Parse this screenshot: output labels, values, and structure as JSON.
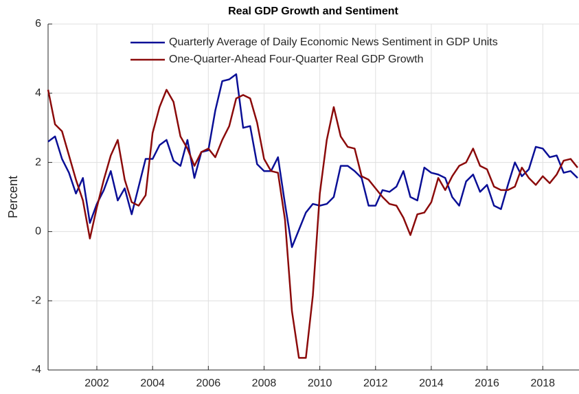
{
  "chart_data": {
    "type": "line",
    "title": "Real GDP Growth and Sentiment",
    "y_label": "Percent",
    "x": [
      2000.25,
      2000.5,
      2000.75,
      2001,
      2001.25,
      2001.5,
      2001.75,
      2002,
      2002.25,
      2002.5,
      2002.75,
      2003,
      2003.25,
      2003.5,
      2003.75,
      2004,
      2004.25,
      2004.5,
      2004.75,
      2005,
      2005.25,
      2005.5,
      2005.75,
      2006,
      2006.25,
      2006.5,
      2006.75,
      2007,
      2007.25,
      2007.5,
      2007.75,
      2008,
      2008.25,
      2008.5,
      2008.75,
      2009,
      2009.25,
      2009.5,
      2009.75,
      2010,
      2010.25,
      2010.5,
      2010.75,
      2011,
      2011.25,
      2011.5,
      2011.75,
      2012,
      2012.25,
      2012.5,
      2012.75,
      2013,
      2013.25,
      2013.5,
      2013.75,
      2014,
      2014.25,
      2014.5,
      2014.75,
      2015,
      2015.25,
      2015.5,
      2015.75,
      2016,
      2016.25,
      2016.5,
      2016.75,
      2017,
      2017.25,
      2017.5,
      2017.75,
      2018,
      2018.25,
      2018.5,
      2018.75,
      2019,
      2019.25
    ],
    "series": [
      {
        "name": "Quarterly Average of Daily Economic News Sentiment in GDP Units",
        "color": "#0a0f96",
        "values": [
          2.6,
          2.75,
          2.1,
          1.7,
          1.1,
          1.55,
          0.25,
          0.8,
          1.2,
          1.75,
          0.9,
          1.25,
          0.5,
          1.3,
          2.1,
          2.1,
          2.5,
          2.65,
          2.05,
          1.9,
          2.65,
          1.55,
          2.3,
          2.35,
          3.5,
          4.35,
          4.4,
          4.55,
          3.0,
          3.05,
          1.95,
          1.75,
          1.75,
          2.15,
          0.8,
          -0.45,
          0.05,
          0.55,
          0.8,
          0.75,
          0.8,
          1.0,
          1.9,
          1.9,
          1.75,
          1.55,
          0.75,
          0.75,
          1.2,
          1.15,
          1.3,
          1.75,
          1.0,
          0.9,
          1.85,
          1.7,
          1.65,
          1.55,
          1.0,
          0.75,
          1.45,
          1.65,
          1.15,
          1.35,
          0.75,
          0.65,
          1.35,
          2.0,
          1.6,
          1.8,
          2.45,
          2.4,
          2.15,
          2.2,
          1.7,
          1.75,
          1.55
        ]
      },
      {
        "name": "One-Quarter-Ahead Four-Quarter Real GDP Growth",
        "color": "#8b0a0a",
        "values": [
          4.1,
          3.1,
          2.9,
          2.2,
          1.5,
          0.9,
          -0.2,
          0.7,
          1.5,
          2.2,
          2.65,
          1.5,
          0.85,
          0.75,
          1.05,
          2.85,
          3.6,
          4.1,
          3.75,
          2.75,
          2.4,
          1.9,
          2.3,
          2.4,
          2.15,
          2.65,
          3.05,
          3.85,
          3.95,
          3.85,
          3.15,
          2.1,
          1.75,
          1.7,
          0.35,
          -2.3,
          -3.65,
          -3.65,
          -1.85,
          1.1,
          2.65,
          3.6,
          2.75,
          2.45,
          2.4,
          1.6,
          1.5,
          1.25,
          1.0,
          0.8,
          0.75,
          0.4,
          -0.1,
          0.5,
          0.55,
          0.85,
          1.55,
          1.2,
          1.6,
          1.9,
          2.0,
          2.4,
          1.9,
          1.8,
          1.3,
          1.2,
          1.2,
          1.3,
          1.85,
          1.55,
          1.35,
          1.6,
          1.4,
          1.65,
          2.05,
          2.1,
          1.85
        ]
      }
    ],
    "xlim": [
      2000.25,
      2019.3
    ],
    "xticks": [
      2002,
      2004,
      2006,
      2008,
      2010,
      2012,
      2014,
      2016,
      2018
    ],
    "ylim": [
      -4,
      6
    ],
    "yticks": [
      -4,
      -2,
      0,
      2,
      4,
      6
    ],
    "grid": true,
    "legend": "top-right"
  }
}
